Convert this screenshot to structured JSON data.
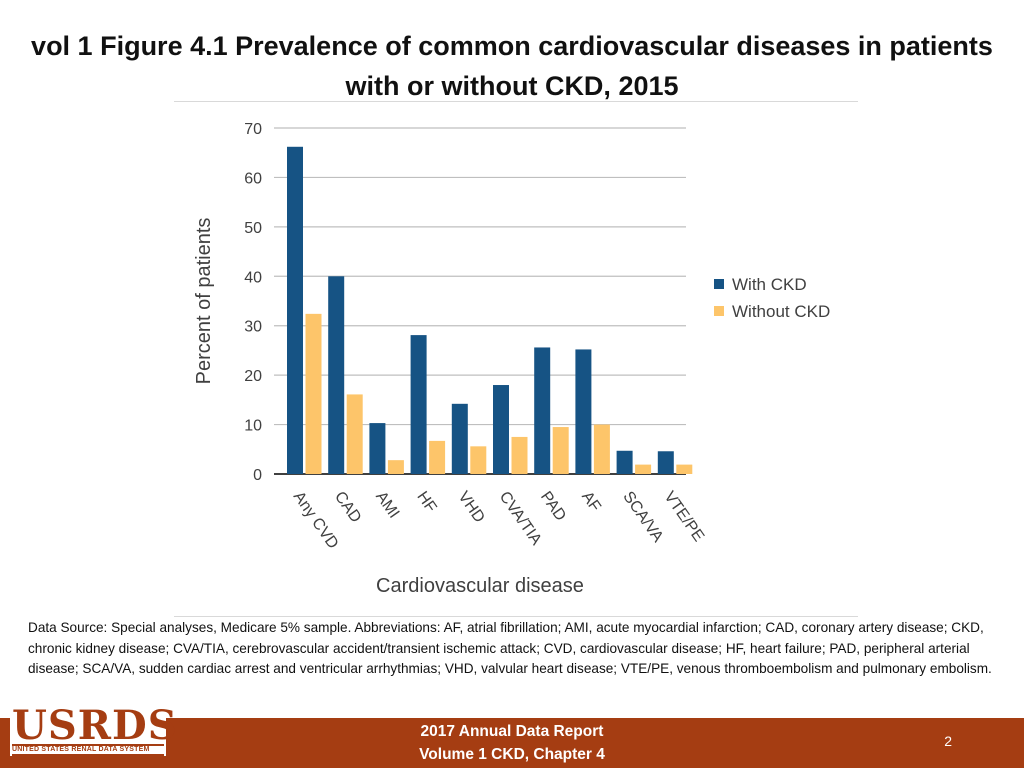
{
  "slide": {
    "title": "vol 1 Figure 4.1 Prevalence of common cardiovascular diseases in patients with or without CKD, 2015",
    "data_source": "Data Source: Special analyses, Medicare 5% sample. Abbreviations: AF, atrial fibrillation; AMI, acute myocardial infarction; CAD, coronary artery disease; CKD, chronic kidney disease; CVA/TIA, cerebrovascular accident/transient ischemic attack; CVD, cardiovascular disease; HF, heart failure; PAD, peripheral arterial disease; SCA/VA, sudden cardiac arrest and ventricular arrhythmias; VHD, valvular heart disease; VTE/PE, venous thromboembolism and pulmonary embolism.",
    "footer_line1": "2017 Annual Data Report",
    "footer_line2": "Volume 1 CKD, Chapter 4",
    "page_number": "2",
    "logo_text": "USRDS",
    "logo_subtext": "UNITED STATES RENAL DATA SYSTEM"
  },
  "colors": {
    "with_ckd": "#165384",
    "without_ckd": "#fdc56a",
    "gridline": "#bfbfbf",
    "axis_text": "#404040",
    "brand": "#a53d12"
  },
  "chart_data": {
    "type": "bar",
    "title": "",
    "xlabel": "Cardiovascular disease",
    "ylabel": "Percent of patients",
    "ylim": [
      0,
      70
    ],
    "yticks": [
      0,
      10,
      20,
      30,
      40,
      50,
      60,
      70
    ],
    "grid": true,
    "legend_position": "right",
    "categories": [
      "Any CVD",
      "CAD",
      "AMI",
      "HF",
      "VHD",
      "CVA/TIA",
      "PAD",
      "AF",
      "SCA/VA",
      "VTE/PE"
    ],
    "series": [
      {
        "name": "With CKD",
        "values": [
          66.2,
          40.0,
          10.3,
          28.1,
          14.2,
          18.0,
          25.6,
          25.2,
          4.7,
          4.6
        ]
      },
      {
        "name": "Without CKD",
        "values": [
          32.4,
          16.1,
          2.8,
          6.7,
          5.6,
          7.5,
          9.5,
          10.0,
          1.9,
          1.9
        ]
      }
    ]
  }
}
